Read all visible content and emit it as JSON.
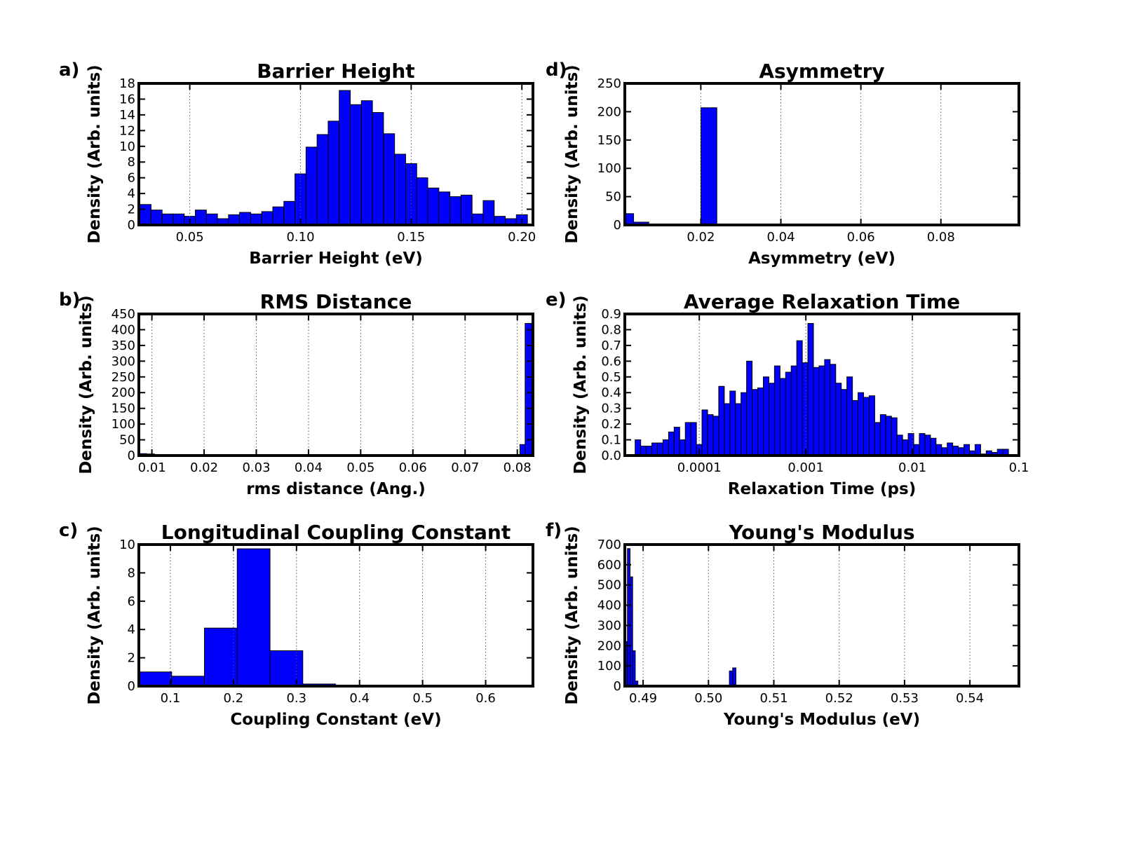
{
  "panels": [
    {
      "letter": "a)",
      "chart_data": {
        "type": "bar",
        "title": "Barrier Height",
        "xlabel": "Barrier Height (eV)",
        "ylabel": "Density (Arb. units)",
        "xlim": [
          0.027,
          0.205
        ],
        "ylim": [
          0,
          18
        ],
        "xticks": [
          0.05,
          0.1,
          0.15,
          0.2
        ],
        "xtick_labels": [
          "0.05",
          "0.10",
          "0.15",
          "0.20"
        ],
        "yticks": [
          0,
          2,
          4,
          6,
          8,
          10,
          12,
          14,
          16,
          18
        ],
        "ytick_labels": [
          "0",
          "2",
          "4",
          "6",
          "8",
          "10",
          "12",
          "14",
          "16",
          "18"
        ],
        "xscale": "linear",
        "grid": "vertical-dotted",
        "bin_start": 0.0275,
        "bin_width": 0.005,
        "values": [
          2.6,
          1.9,
          1.4,
          1.4,
          1.1,
          1.9,
          1.4,
          0.8,
          1.3,
          1.6,
          1.4,
          1.7,
          2.3,
          3.0,
          6.5,
          9.9,
          11.5,
          13.2,
          17.1,
          15.3,
          15.8,
          14.3,
          11.6,
          9.0,
          7.8,
          6.0,
          4.7,
          4.2,
          3.6,
          3.8,
          1.4,
          3.1,
          1.1,
          0.8,
          1.3
        ]
      }
    },
    {
      "letter": "b)",
      "chart_data": {
        "type": "bar",
        "title": "RMS Distance",
        "xlabel": "rms distance (Ang.)",
        "ylabel": "Density (Arb. units)",
        "xlim": [
          0.0075,
          0.083
        ],
        "ylim": [
          0,
          450
        ],
        "xticks": [
          0.01,
          0.02,
          0.03,
          0.04,
          0.05,
          0.06,
          0.07,
          0.08
        ],
        "xtick_labels": [
          "0.01",
          "0.02",
          "0.03",
          "0.04",
          "0.05",
          "0.06",
          "0.07",
          "0.08"
        ],
        "yticks": [
          0,
          50,
          100,
          150,
          200,
          250,
          300,
          350,
          400,
          450
        ],
        "ytick_labels": [
          "0",
          "50",
          "100",
          "150",
          "200",
          "250",
          "300",
          "350",
          "400",
          "450"
        ],
        "xscale": "linear",
        "grid": "vertical-dotted",
        "bars": [
          {
            "x0": 0.0075,
            "x1": 0.009,
            "value": 6
          },
          {
            "x0": 0.009,
            "x1": 0.0105,
            "value": 5
          },
          {
            "x0": 0.0105,
            "x1": 0.012,
            "value": 3
          },
          {
            "x0": 0.012,
            "x1": 0.017,
            "value": 2
          },
          {
            "x0": 0.017,
            "x1": 0.079,
            "value": 1
          },
          {
            "x0": 0.0805,
            "x1": 0.0815,
            "value": 35
          },
          {
            "x0": 0.0815,
            "x1": 0.083,
            "value": 420
          }
        ]
      }
    },
    {
      "letter": "c)",
      "chart_data": {
        "type": "bar",
        "title": "Longitudinal Coupling Constant",
        "xlabel": "Coupling Constant (eV)",
        "ylabel": "Density (Arb. units)",
        "xlim": [
          0.05,
          0.675
        ],
        "ylim": [
          0,
          10
        ],
        "xticks": [
          0.1,
          0.2,
          0.3,
          0.4,
          0.5,
          0.6
        ],
        "xtick_labels": [
          "0.1",
          "0.2",
          "0.3",
          "0.4",
          "0.5",
          "0.6"
        ],
        "yticks": [
          0,
          2,
          4,
          6,
          8,
          10
        ],
        "ytick_labels": [
          "0",
          "2",
          "4",
          "6",
          "8",
          "10"
        ],
        "xscale": "linear",
        "grid": "vertical-dotted",
        "bin_start": 0.05,
        "bin_width": 0.052,
        "values": [
          1.0,
          0.7,
          4.1,
          9.7,
          2.5,
          0.15,
          0.0,
          0.0,
          0.0,
          0.0,
          0.0,
          0.0
        ]
      }
    },
    {
      "letter": "d)",
      "chart_data": {
        "type": "bar",
        "title": "Asymmetry",
        "xlabel": "Asymmetry (eV)",
        "ylabel": "Density (Arb. units)",
        "xlim": [
          0.001,
          0.0995
        ],
        "ylim": [
          0,
          250
        ],
        "xticks": [
          0.02,
          0.04,
          0.06,
          0.08
        ],
        "xtick_labels": [
          "0.02",
          "0.04",
          "0.06",
          "0.08"
        ],
        "yticks": [
          0,
          50,
          100,
          150,
          200,
          250
        ],
        "ytick_labels": [
          "0",
          "50",
          "100",
          "150",
          "200",
          "250"
        ],
        "xscale": "linear",
        "grid": "vertical-dotted",
        "bars": [
          {
            "x0": 0.001,
            "x1": 0.0032,
            "value": 20
          },
          {
            "x0": 0.0032,
            "x1": 0.007,
            "value": 5
          },
          {
            "x0": 0.02,
            "x1": 0.024,
            "value": 207
          }
        ]
      }
    },
    {
      "letter": "e)",
      "chart_data": {
        "type": "bar",
        "title": "Average Relaxation Time",
        "xlabel": "Relaxation Time (ps)",
        "ylabel": "Density (Arb. units)",
        "xlim": [
          2e-05,
          0.1
        ],
        "ylim": [
          0,
          0.9
        ],
        "xticks": [
          0.0001,
          0.001,
          0.01,
          0.1
        ],
        "xtick_labels": [
          "0.0001",
          "0.001",
          "0.01",
          "0.1"
        ],
        "yticks": [
          0,
          0.1,
          0.2,
          0.3,
          0.4,
          0.5,
          0.6,
          0.7,
          0.8,
          0.9
        ],
        "ytick_labels": [
          "0.0",
          "0.1",
          "0.2",
          "0.3",
          "0.4",
          "0.5",
          "0.6",
          "0.7",
          "0.8",
          "0.9"
        ],
        "xscale": "log",
        "grid": "vertical-dotted",
        "bin_start": 2.5e-05,
        "bin_log_width": 0.0523,
        "values": [
          0.1,
          0.06,
          0.06,
          0.08,
          0.08,
          0.1,
          0.15,
          0.18,
          0.1,
          0.21,
          0.21,
          0.07,
          0.29,
          0.26,
          0.25,
          0.44,
          0.33,
          0.41,
          0.33,
          0.4,
          0.6,
          0.42,
          0.43,
          0.5,
          0.46,
          0.57,
          0.49,
          0.53,
          0.57,
          0.73,
          0.59,
          0.84,
          0.56,
          0.57,
          0.61,
          0.58,
          0.46,
          0.42,
          0.5,
          0.35,
          0.4,
          0.37,
          0.38,
          0.21,
          0.26,
          0.25,
          0.24,
          0.13,
          0.1,
          0.14,
          0.07,
          0.14,
          0.13,
          0.11,
          0.07,
          0.05,
          0.08,
          0.06,
          0.05,
          0.07,
          0.03,
          0.07,
          0.01,
          0.03,
          0.02,
          0.04,
          0.04
        ]
      }
    },
    {
      "letter": "f)",
      "chart_data": {
        "type": "bar",
        "title": "Young's Modulus",
        "xlabel": "Young's Modulus (eV)",
        "ylabel": "Density (Arb. units)",
        "xlim": [
          0.4872,
          0.5475
        ],
        "ylim": [
          0,
          700
        ],
        "xticks": [
          0.49,
          0.5,
          0.51,
          0.52,
          0.53,
          0.54
        ],
        "xtick_labels": [
          "0.49",
          "0.50",
          "0.51",
          "0.52",
          "0.53",
          "0.54"
        ],
        "yticks": [
          0,
          100,
          200,
          300,
          400,
          500,
          600,
          700
        ],
        "ytick_labels": [
          "0",
          "100",
          "200",
          "300",
          "400",
          "500",
          "600",
          "700"
        ],
        "xscale": "linear",
        "grid": "vertical-dotted",
        "bars": [
          {
            "x0": 0.4872,
            "x1": 0.4876,
            "value": 220
          },
          {
            "x0": 0.4876,
            "x1": 0.488,
            "value": 680
          },
          {
            "x0": 0.488,
            "x1": 0.4884,
            "value": 540
          },
          {
            "x0": 0.4884,
            "x1": 0.4888,
            "value": 175
          },
          {
            "x0": 0.4888,
            "x1": 0.4892,
            "value": 25
          },
          {
            "x0": 0.5032,
            "x1": 0.5037,
            "value": 75
          },
          {
            "x0": 0.5037,
            "x1": 0.5042,
            "value": 90
          }
        ]
      }
    }
  ],
  "colors": {
    "bar_fill": "#0000ff",
    "bar_edge": "#000000",
    "frame": "#000000",
    "grid": "#555555"
  }
}
